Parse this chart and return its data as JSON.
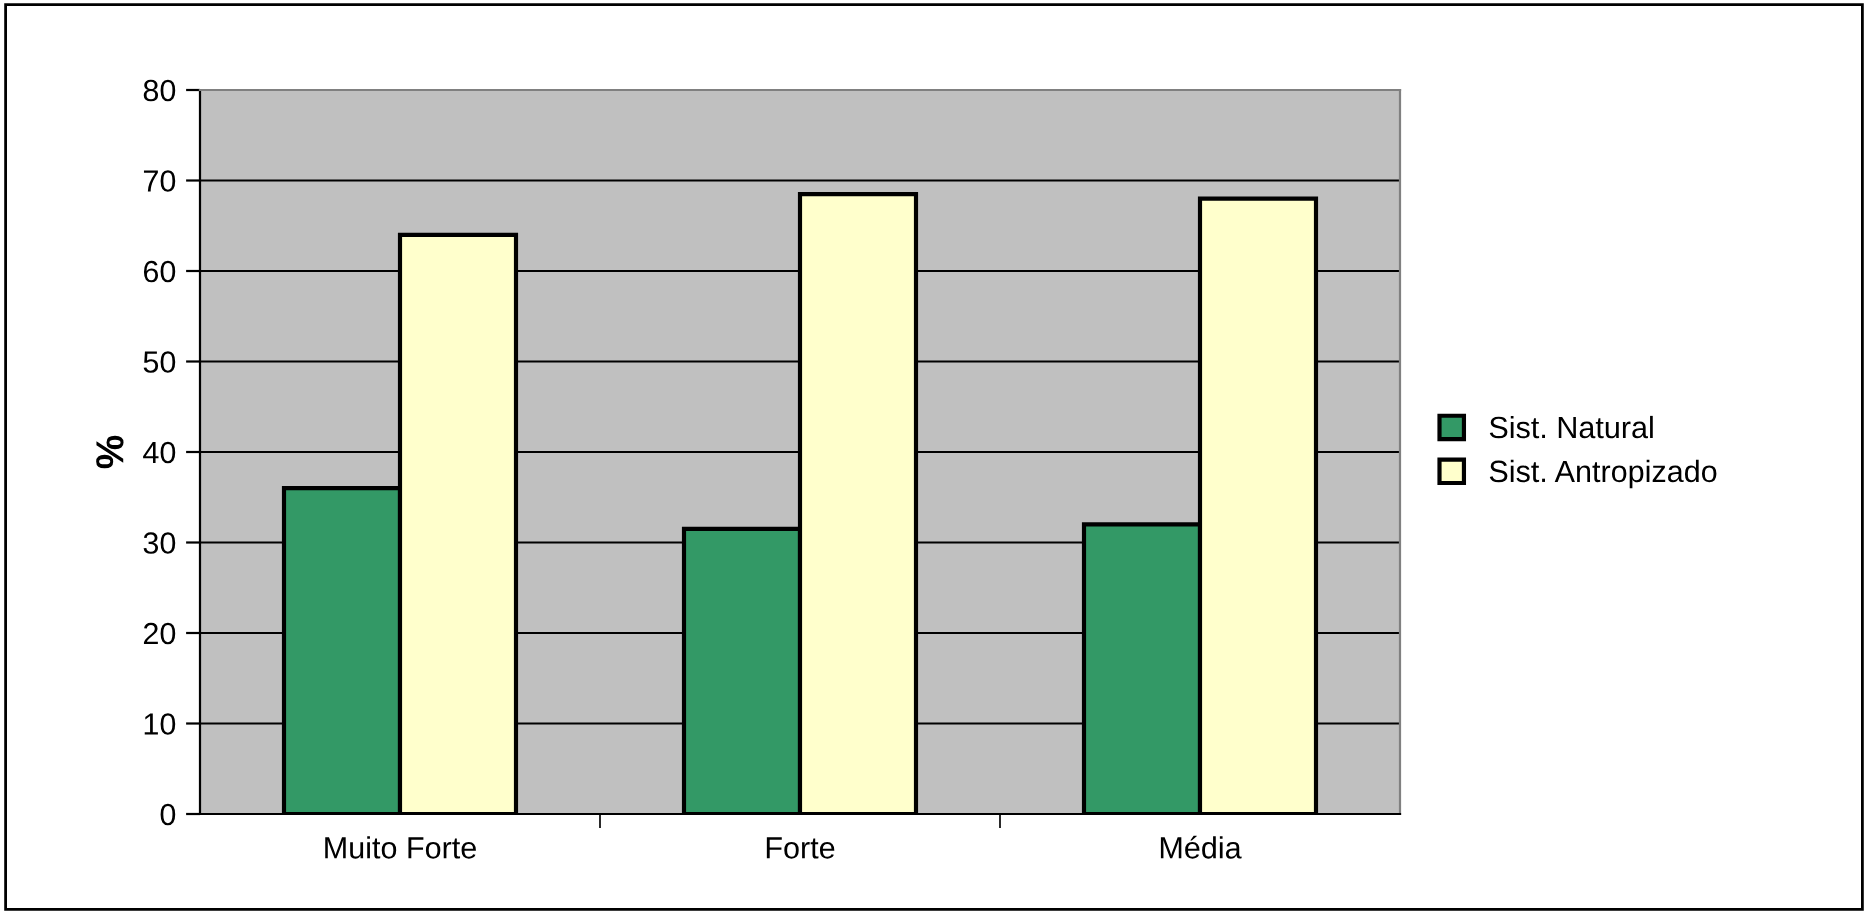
{
  "chart_data": {
    "type": "bar",
    "ylabel": "%",
    "categories": [
      "Muito Forte",
      "Forte",
      "Média"
    ],
    "series": [
      {
        "name": "Sist. Natural",
        "color": "#339966",
        "values": [
          36,
          31.5,
          32
        ]
      },
      {
        "name": "Sist. Antropizado",
        "color": "#ffffcc",
        "values": [
          64,
          68.5,
          68
        ]
      }
    ],
    "ylim": [
      0,
      80
    ],
    "yticks": [
      0,
      10,
      20,
      30,
      40,
      50,
      60,
      70,
      80
    ],
    "grid": "y",
    "legend": "right"
  }
}
